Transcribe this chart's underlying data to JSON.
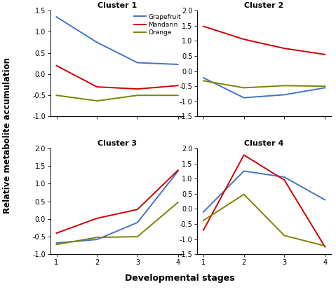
{
  "clusters": {
    "Cluster 1": {
      "ylim": [
        -1.0,
        1.5
      ],
      "yticks": [
        -1.0,
        -0.5,
        0.0,
        0.5,
        1.0,
        1.5
      ],
      "grapefruit": [
        1.35,
        0.75,
        0.27,
        0.23
      ],
      "mandarin": [
        0.2,
        -0.3,
        -0.35,
        -0.27
      ],
      "orange": [
        -0.5,
        -0.63,
        -0.5,
        -0.5
      ]
    },
    "Cluster 2": {
      "ylim": [
        -1.5,
        2.0
      ],
      "yticks": [
        -1.5,
        -1.0,
        -0.5,
        0.0,
        0.5,
        1.0,
        1.5,
        2.0
      ],
      "grapefruit": [
        -0.22,
        -0.88,
        -0.78,
        -0.55
      ],
      "mandarin": [
        1.48,
        1.05,
        0.75,
        0.55
      ],
      "orange": [
        -0.32,
        -0.55,
        -0.48,
        -0.5
      ]
    },
    "Cluster 3": {
      "ylim": [
        -1.0,
        2.0
      ],
      "yticks": [
        -1.0,
        -0.5,
        0.0,
        0.5,
        1.0,
        1.5,
        2.0
      ],
      "grapefruit": [
        -0.68,
        -0.58,
        -0.1,
        1.35
      ],
      "mandarin": [
        -0.4,
        0.02,
        0.27,
        1.38
      ],
      "orange": [
        -0.72,
        -0.52,
        -0.5,
        0.47
      ]
    },
    "Cluster 4": {
      "ylim": [
        -1.5,
        2.0
      ],
      "yticks": [
        -1.5,
        -1.0,
        -0.5,
        0.0,
        0.5,
        1.0,
        1.5,
        2.0
      ],
      "grapefruit": [
        -0.1,
        1.25,
        1.05,
        0.3
      ],
      "mandarin": [
        -0.7,
        1.78,
        0.95,
        -1.25
      ],
      "orange": [
        -0.38,
        0.48,
        -0.88,
        -1.22
      ]
    }
  },
  "x": [
    1,
    2,
    3,
    4
  ],
  "colors": {
    "grapefruit": "#4472C4",
    "mandarin": "#CC0000",
    "orange": "#808000"
  },
  "legend_labels": [
    "Grapefruit",
    "Mandarin",
    "Orange"
  ],
  "xlabel": "Developmental stages",
  "ylabel": "Relative metabolite accumulation",
  "linewidth": 1.4
}
